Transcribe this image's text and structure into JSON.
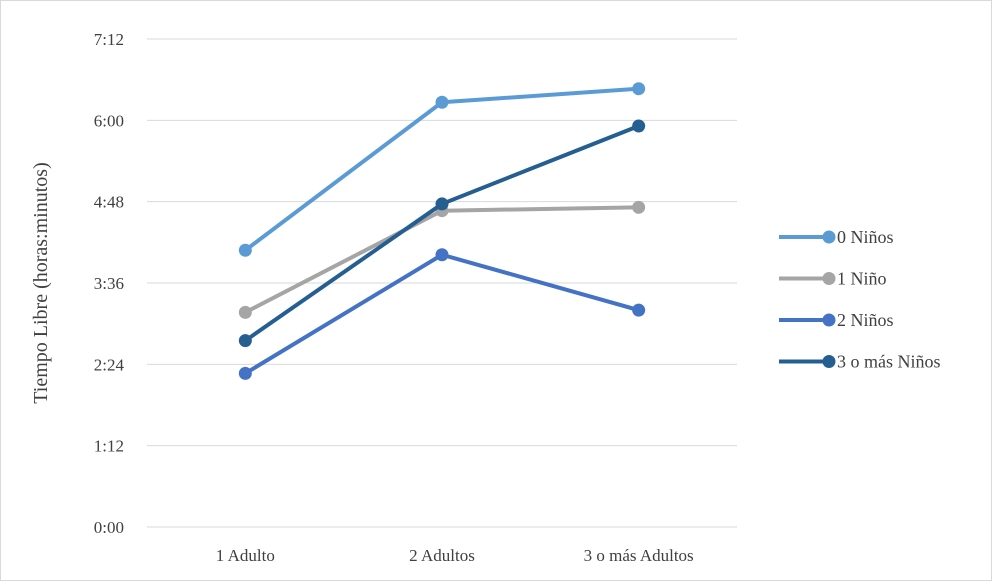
{
  "chart_data": {
    "type": "line",
    "title": "",
    "xlabel": "",
    "ylabel": "Tiempo Libre (horas:minutos)",
    "categories": [
      "1 Adulto",
      "2 Adultos",
      "3 o más Adultos"
    ],
    "y_unit": "minutes",
    "ylim": [
      0,
      432
    ],
    "y_ticks": [
      0,
      72,
      144,
      216,
      288,
      360,
      432
    ],
    "y_tick_labels": [
      "0:00",
      "1:12",
      "2:24",
      "3:36",
      "4:48",
      "6:00",
      "7:12"
    ],
    "grid": true,
    "legend_position": "right",
    "series": [
      {
        "name": "0 Niños",
        "color": "#5b9bd5",
        "values": [
          245,
          376,
          388
        ]
      },
      {
        "name": "1 Niño",
        "color": "#a5a5a5",
        "values": [
          190,
          280,
          283
        ]
      },
      {
        "name": "2 Niños",
        "color": "#4472c4",
        "values": [
          136,
          241,
          192
        ]
      },
      {
        "name": "3 o más Niños",
        "color": "#255e91",
        "values": [
          165,
          286,
          355
        ]
      }
    ]
  }
}
